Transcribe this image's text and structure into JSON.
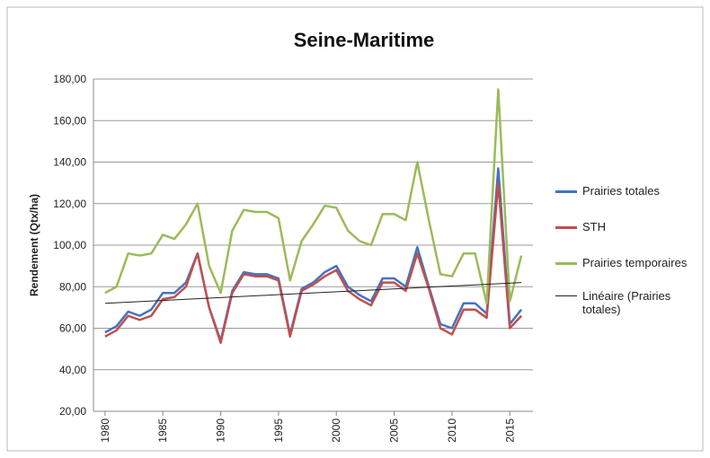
{
  "chart_data": {
    "type": "line",
    "title": "Seine-Maritime",
    "y_label": "Rendement (Qtx/ha)",
    "x": [
      1980,
      1981,
      1982,
      1983,
      1984,
      1985,
      1986,
      1987,
      1988,
      1989,
      1990,
      1991,
      1992,
      1993,
      1994,
      1995,
      1996,
      1997,
      1998,
      1999,
      2000,
      2001,
      2002,
      2003,
      2004,
      2005,
      2006,
      2007,
      2008,
      2009,
      2010,
      2011,
      2012,
      2013,
      2014,
      2015,
      2016
    ],
    "series": [
      {
        "name": "Prairies totales",
        "color": "#4472c4",
        "values": [
          58,
          61,
          68,
          66,
          69,
          77,
          77,
          82,
          96,
          70,
          54,
          78,
          87,
          86,
          86,
          84,
          57,
          79,
          82,
          87,
          90,
          80,
          76,
          73,
          84,
          84,
          80,
          99,
          80,
          62,
          60,
          72,
          72,
          67,
          137,
          62,
          69
        ]
      },
      {
        "name": "STH",
        "color": "#c0504d",
        "values": [
          56,
          59,
          66,
          64,
          66,
          74,
          75,
          80,
          96,
          70,
          53,
          77,
          86,
          85,
          85,
          83,
          56,
          78,
          81,
          85,
          88,
          78,
          74,
          71,
          82,
          82,
          78,
          96,
          79,
          60,
          57,
          69,
          69,
          65,
          130,
          60,
          66
        ]
      },
      {
        "name": "Prairies temporaires",
        "color": "#9bbb59",
        "values": [
          77,
          80,
          96,
          95,
          96,
          105,
          103,
          110,
          120,
          90,
          77,
          107,
          117,
          116,
          116,
          113,
          83,
          102,
          110,
          119,
          118,
          107,
          102,
          100,
          115,
          115,
          112,
          140,
          112,
          86,
          85,
          96,
          96,
          72,
          175,
          73,
          95
        ]
      }
    ],
    "trendline": {
      "name": "Linéaire (Prairies totales)",
      "color": "#222222",
      "x": [
        1980,
        2016
      ],
      "values": [
        72,
        82
      ]
    },
    "xlim": [
      1979,
      2017
    ],
    "xticks": [
      1980,
      1985,
      1990,
      1995,
      2000,
      2005,
      2010,
      2015
    ],
    "ylim": [
      20,
      180
    ],
    "yticks": [
      {
        "value": 20,
        "label": "20,00"
      },
      {
        "value": 40,
        "label": "40,00"
      },
      {
        "value": 60,
        "label": "60,00"
      },
      {
        "value": 80,
        "label": "80,00"
      },
      {
        "value": 100,
        "label": "100,00"
      },
      {
        "value": 120,
        "label": "120,00"
      },
      {
        "value": 140,
        "label": "140,00"
      },
      {
        "value": 160,
        "label": "160,00"
      },
      {
        "value": 180,
        "label": "180,00"
      }
    ],
    "grid": true
  }
}
